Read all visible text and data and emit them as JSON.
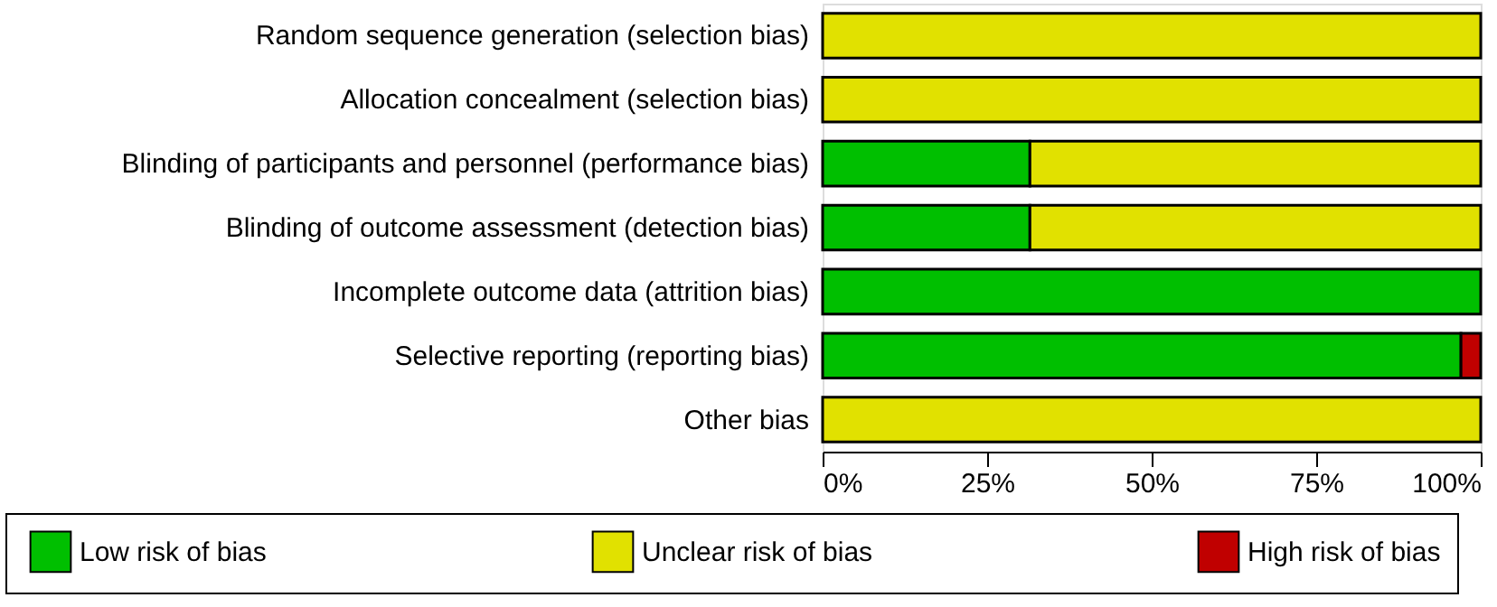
{
  "chart_data": {
    "type": "bar",
    "orientation": "horizontal",
    "stacked": true,
    "categories": [
      "Random sequence generation (selection bias)",
      "Allocation concealment (selection bias)",
      "Blinding of participants and personnel (performance bias)",
      "Blinding of outcome assessment (detection bias)",
      "Incomplete outcome data (attrition bias)",
      "Selective reporting (reporting bias)",
      "Other bias"
    ],
    "series": [
      {
        "name": "Low risk of bias",
        "color": "#00bf00",
        "values": [
          0,
          0,
          31.5,
          31.5,
          100,
          97,
          0
        ]
      },
      {
        "name": "Unclear risk of bias",
        "color": "#e1e100",
        "values": [
          100,
          100,
          68.5,
          68.5,
          0,
          0,
          100
        ]
      },
      {
        "name": "High risk of bias",
        "color": "#c00000",
        "values": [
          0,
          0,
          0,
          0,
          0,
          3,
          0
        ]
      }
    ],
    "xlim": [
      0,
      100
    ],
    "xticks": [
      {
        "value": 0,
        "label": "0%"
      },
      {
        "value": 25,
        "label": "25%"
      },
      {
        "value": 50,
        "label": "50%"
      },
      {
        "value": 75,
        "label": "75%"
      },
      {
        "value": 100,
        "label": "100%"
      }
    ],
    "grid": false,
    "legend": "bottom"
  }
}
